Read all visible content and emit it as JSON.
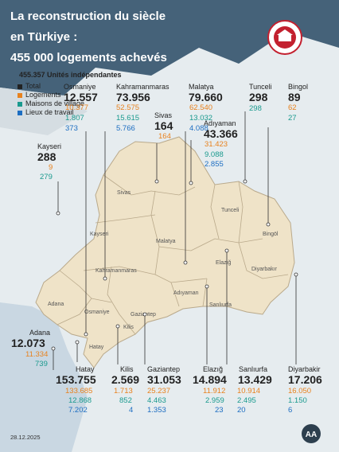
{
  "title": {
    "line1": "La reconstruction du siècle",
    "line2": "en Türkiye :",
    "line3": "455 000 logements achevés"
  },
  "subtitle": "455.357 Unités indépendantes",
  "legend": {
    "total": "Total",
    "logements": "Logements",
    "maisons": "Maisons de village",
    "lieux": "Lieux de travail"
  },
  "colors": {
    "logements": "#e8821e",
    "maisons": "#1a9a8e",
    "lieux": "#1d6ec2",
    "map_fill": "#efe3c8",
    "bg": "#e9eef1"
  },
  "provinces": {
    "osmaniye": {
      "name": "Osmaniye",
      "total": "12.557",
      "logements": "10.377",
      "maisons": "1.807",
      "lieux": "373"
    },
    "kahramanmaras": {
      "name": "Kahramanmaras",
      "total": "73.956",
      "logements": "52.575",
      "maisons": "15.615",
      "lieux": "5.766"
    },
    "malatya": {
      "name": "Malatya",
      "total": "79.660",
      "logements": "62.540",
      "maisons": "13.032",
      "lieux": "4.088"
    },
    "tunceli": {
      "name": "Tunceli",
      "total": "298",
      "maisons": "298"
    },
    "bingol": {
      "name": "Bingol",
      "total": "89",
      "logements": "62",
      "maisons": "27"
    },
    "sivas": {
      "name": "Sivas",
      "total": "164",
      "logements": "164"
    },
    "kayseri": {
      "name": "Kayseri",
      "total": "288",
      "logements": "9",
      "maisons": "279"
    },
    "adiyaman": {
      "name": "Adıyaman",
      "total": "43.366",
      "logements": "31.423",
      "maisons": "9.088",
      "lieux": "2.855"
    },
    "adana": {
      "name": "Adana",
      "total": "12.073",
      "logements": "11.334",
      "maisons": "739"
    },
    "hatay": {
      "name": "Hatay",
      "total": "153.755",
      "logements": "133.685",
      "maisons": "12.868",
      "lieux": "7.202"
    },
    "kilis": {
      "name": "Kilis",
      "total": "2.569",
      "logements": "1.713",
      "maisons": "852",
      "lieux": "4"
    },
    "gaziantep": {
      "name": "Gaziantep",
      "total": "31.053",
      "logements": "25.237",
      "maisons": "4.463",
      "lieux": "1.353"
    },
    "elazig": {
      "name": "Elazığ",
      "total": "14.894",
      "logements": "11.912",
      "maisons": "2.959",
      "lieux": "23"
    },
    "sanliurfa": {
      "name": "Sanlıurfa",
      "total": "13.429",
      "logements": "10.914",
      "maisons": "2.495",
      "lieux": "20"
    },
    "diyarbakir": {
      "name": "Diyarbakir",
      "total": "17.206",
      "logements": "16.050",
      "maisons": "1.150",
      "lieux": "6"
    }
  },
  "map_labels": {
    "sivas": "Sivas",
    "kayseri": "Kayseri",
    "malatya": "Malatya",
    "kahramanmaras": "Kahramanmaras",
    "adiyaman": "Adıyaman",
    "adana": "Adana",
    "osmaniye": "Osmaniye",
    "gaziantep": "Gaziantep",
    "kilis": "Kilis",
    "hatay": "Hatay",
    "sanliurfa": "Sanlıurfa",
    "diyarbakir": "Diyarbakır",
    "elazig": "Elazığ",
    "tunceli": "Tunceli",
    "bingol": "Bingöl"
  },
  "date": "28.12.2025",
  "logo_text": "AA"
}
